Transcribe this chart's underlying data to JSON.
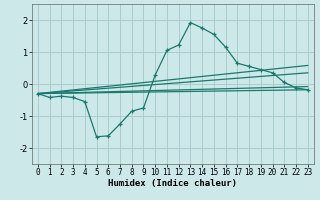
{
  "xlabel": "Humidex (Indice chaleur)",
  "xlim": [
    -0.5,
    23.5
  ],
  "ylim": [
    -2.5,
    2.5
  ],
  "yticks": [
    -2,
    -1,
    0,
    1,
    2
  ],
  "xticks": [
    0,
    1,
    2,
    3,
    4,
    5,
    6,
    7,
    8,
    9,
    10,
    11,
    12,
    13,
    14,
    15,
    16,
    17,
    18,
    19,
    20,
    21,
    22,
    23
  ],
  "bg_color": "#cce8e8",
  "grid_color": "#aacccc",
  "line_color": "#1a7a6e",
  "line1_x": [
    0,
    1,
    2,
    3,
    4,
    5,
    6,
    7,
    8,
    9,
    10,
    11,
    12,
    13,
    14,
    15,
    16,
    17,
    18,
    19,
    20,
    21,
    22,
    23
  ],
  "line1_y": [
    -0.3,
    -0.42,
    -0.38,
    -0.42,
    -0.55,
    -1.65,
    -1.62,
    -1.25,
    -0.85,
    -0.75,
    0.28,
    1.05,
    1.22,
    1.92,
    1.75,
    1.55,
    1.15,
    0.65,
    0.55,
    0.45,
    0.35,
    0.05,
    -0.12,
    -0.18
  ],
  "line2_x": [
    0,
    23
  ],
  "line2_y": [
    -0.3,
    -0.18
  ],
  "line3_x": [
    0,
    23
  ],
  "line3_y": [
    -0.3,
    -0.08
  ],
  "line4_x": [
    0,
    23
  ],
  "line4_y": [
    -0.3,
    0.35
  ],
  "line5_x": [
    0,
    23
  ],
  "line5_y": [
    -0.3,
    0.58
  ]
}
